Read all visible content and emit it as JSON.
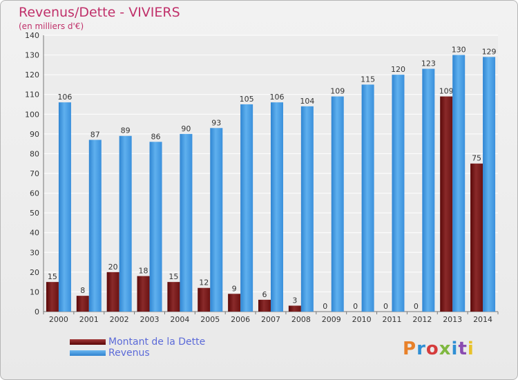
{
  "header": {
    "title": "Revenus/Dette - VIVIERS",
    "subtitle": "(en milliers d'€)"
  },
  "logo": {
    "text": "Proxiti",
    "colors": [
      "#e8812a",
      "#2f8fd4",
      "#d53c3c",
      "#7fb840",
      "#2f8fd4",
      "#8a4bb0",
      "#e8c22a"
    ]
  },
  "chart_data": {
    "type": "bar",
    "title": "Revenus/Dette - VIVIERS",
    "subtitle": "(en milliers d'€)",
    "categories": [
      "2000",
      "2001",
      "2002",
      "2003",
      "2004",
      "2005",
      "2006",
      "2007",
      "2008",
      "2009",
      "2010",
      "2011",
      "2012",
      "2013",
      "2014"
    ],
    "series": [
      {
        "name": "Montant de la Dette",
        "color": "#7a1515",
        "values": [
          15,
          8,
          20,
          18,
          15,
          12,
          9,
          6,
          3,
          0,
          0,
          0,
          0,
          109,
          75
        ]
      },
      {
        "name": "Revenus",
        "color": "#4aa0e6",
        "values": [
          106,
          87,
          89,
          86,
          90,
          93,
          105,
          106,
          104,
          109,
          115,
          120,
          123,
          130,
          129
        ]
      }
    ],
    "ylim": [
      0,
      140
    ],
    "yticks": [
      0,
      10,
      20,
      30,
      40,
      50,
      60,
      70,
      80,
      90,
      100,
      110,
      120,
      130,
      140
    ],
    "grid": true,
    "legend": "bottom-left"
  }
}
